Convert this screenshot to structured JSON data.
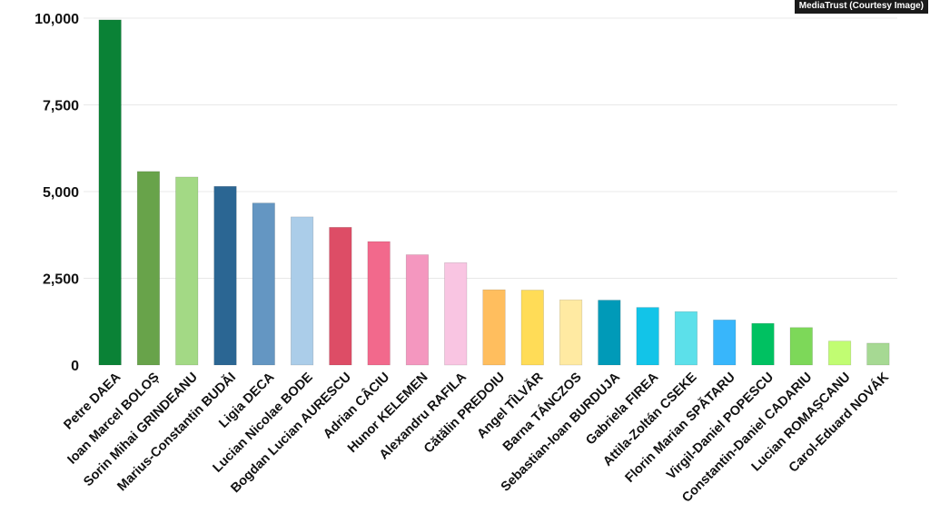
{
  "credit": "MediaTrust (Courtesy Image)",
  "chart_data": {
    "type": "bar",
    "title": "",
    "xlabel": "",
    "ylabel": "",
    "ylim": [
      0,
      10000
    ],
    "yticks": [
      0,
      2500,
      5000,
      7500,
      10000
    ],
    "ytick_labels": [
      "0",
      "2,500",
      "5,000",
      "7,500",
      "10,000"
    ],
    "grid": true,
    "categories": [
      "Petre DAEA",
      "Ioan Marcel BOLOȘ",
      "Sorin Mihai GRINDEANU",
      "Marius-Constantin BUDĂI",
      "Ligia DECA",
      "Lucian Nicolae BODE",
      "Bogdan Lucian AURESCU",
      "Adrian CÂCIU",
      "Hunor KELEMEN",
      "Alexandru RAFILA",
      "Cătălin PREDOIU",
      "Angel TÎLVĂR",
      "Barna TÁNCZOS",
      "Sebastian-Ioan BURDUJA",
      "Gabriela FIREA",
      "Attila-Zoltán CSEKE",
      "Florin Marian SPĂTARU",
      "Virgil-Daniel POPESCU",
      "Constantin-Daniel CADARIU",
      "Lucian ROMAȘCANU",
      "Carol-Eduard NOVÁK"
    ],
    "values": [
      9950,
      5580,
      5420,
      5150,
      4670,
      4270,
      3970,
      3560,
      3180,
      2950,
      2170,
      2160,
      1880,
      1870,
      1660,
      1540,
      1300,
      1200,
      1080,
      690,
      630
    ],
    "colors": [
      "#0a8236",
      "#68a34a",
      "#a3d985",
      "#2b6693",
      "#6496c2",
      "#abcde9",
      "#dd4d66",
      "#f2698c",
      "#f497bf",
      "#f9c5e2",
      "#ffbe5e",
      "#ffdc57",
      "#ffeaa2",
      "#009ab8",
      "#12c4e8",
      "#5ce0ea",
      "#38b6fb",
      "#00c161",
      "#7dd859",
      "#c1fd72",
      "#a6d993"
    ]
  }
}
